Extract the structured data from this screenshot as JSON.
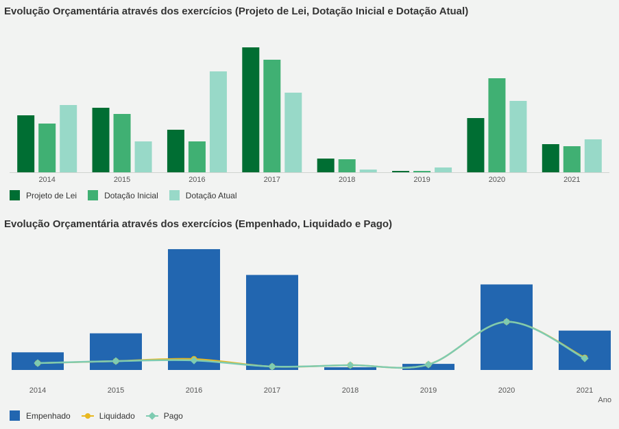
{
  "charts": {
    "budget": {
      "title": "Evolução Orçamentária através dos exercícios (Projeto de Lei, Dotação Inicial e Dotação Atual)",
      "legend": [
        "Projeto de Lei",
        "Dotação Inicial",
        "Dotação Atual"
      ]
    },
    "execution": {
      "title": "Evolução Orçamentária através dos exercícios (Empenhado, Liquidado e Pago)",
      "legend": [
        "Empenhado",
        "Liquidado",
        "Pago"
      ],
      "xlabel": "Ano"
    }
  },
  "chart_data": [
    {
      "type": "bar",
      "title": "Evolução Orçamentária através dos exercícios (Projeto de Lei, Dotação Inicial e Dotação Atual)",
      "categories": [
        "2014",
        "2015",
        "2016",
        "2017",
        "2018",
        "2019",
        "2020",
        "2021"
      ],
      "series": [
        {
          "name": "Projeto de Lei",
          "color": "#006e33",
          "values": [
            83,
            94,
            62,
            182,
            20,
            2,
            79,
            41
          ]
        },
        {
          "name": "Dotação Inicial",
          "color": "#40b073",
          "values": [
            71,
            85,
            45,
            164,
            19,
            2,
            137,
            38
          ]
        },
        {
          "name": "Dotação Atual",
          "color": "#98d9c8",
          "values": [
            98,
            45,
            147,
            116,
            4,
            7,
            104,
            48
          ]
        }
      ],
      "ylim": [
        0,
        190
      ],
      "legend_position": "bottom-left",
      "grid": false
    },
    {
      "type": "bar",
      "title": "Evolução Orçamentária através dos exercícios (Empenhado, Liquidado e Pago)",
      "categories": [
        "2014",
        "2015",
        "2016",
        "2017",
        "2018",
        "2019",
        "2020",
        "2021"
      ],
      "xlabel": "Ano",
      "series": [
        {
          "name": "Empenhado",
          "type": "bar",
          "color": "#2266b0",
          "values": [
            26,
            54,
            178,
            140,
            4,
            9,
            126,
            58
          ]
        },
        {
          "name": "Liquidado",
          "type": "line",
          "color": "#e8b820",
          "values": [
            5,
            8,
            11,
            0,
            2,
            3,
            66,
            13
          ]
        },
        {
          "name": "Pago",
          "type": "line",
          "color": "#7ecbb1",
          "values": [
            5,
            8,
            9,
            0,
            2,
            3,
            66,
            12
          ]
        }
      ],
      "ylim": [
        0,
        180
      ],
      "legend_position": "bottom-left",
      "grid": false
    }
  ]
}
